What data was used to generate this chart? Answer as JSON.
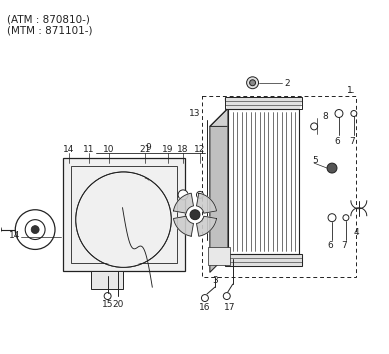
{
  "title_line1": "(ATM : 870810-)",
  "title_line2": "(MTM : 871101-)",
  "bg_color": "#ffffff",
  "lc": "#222222",
  "fs": 6.5
}
